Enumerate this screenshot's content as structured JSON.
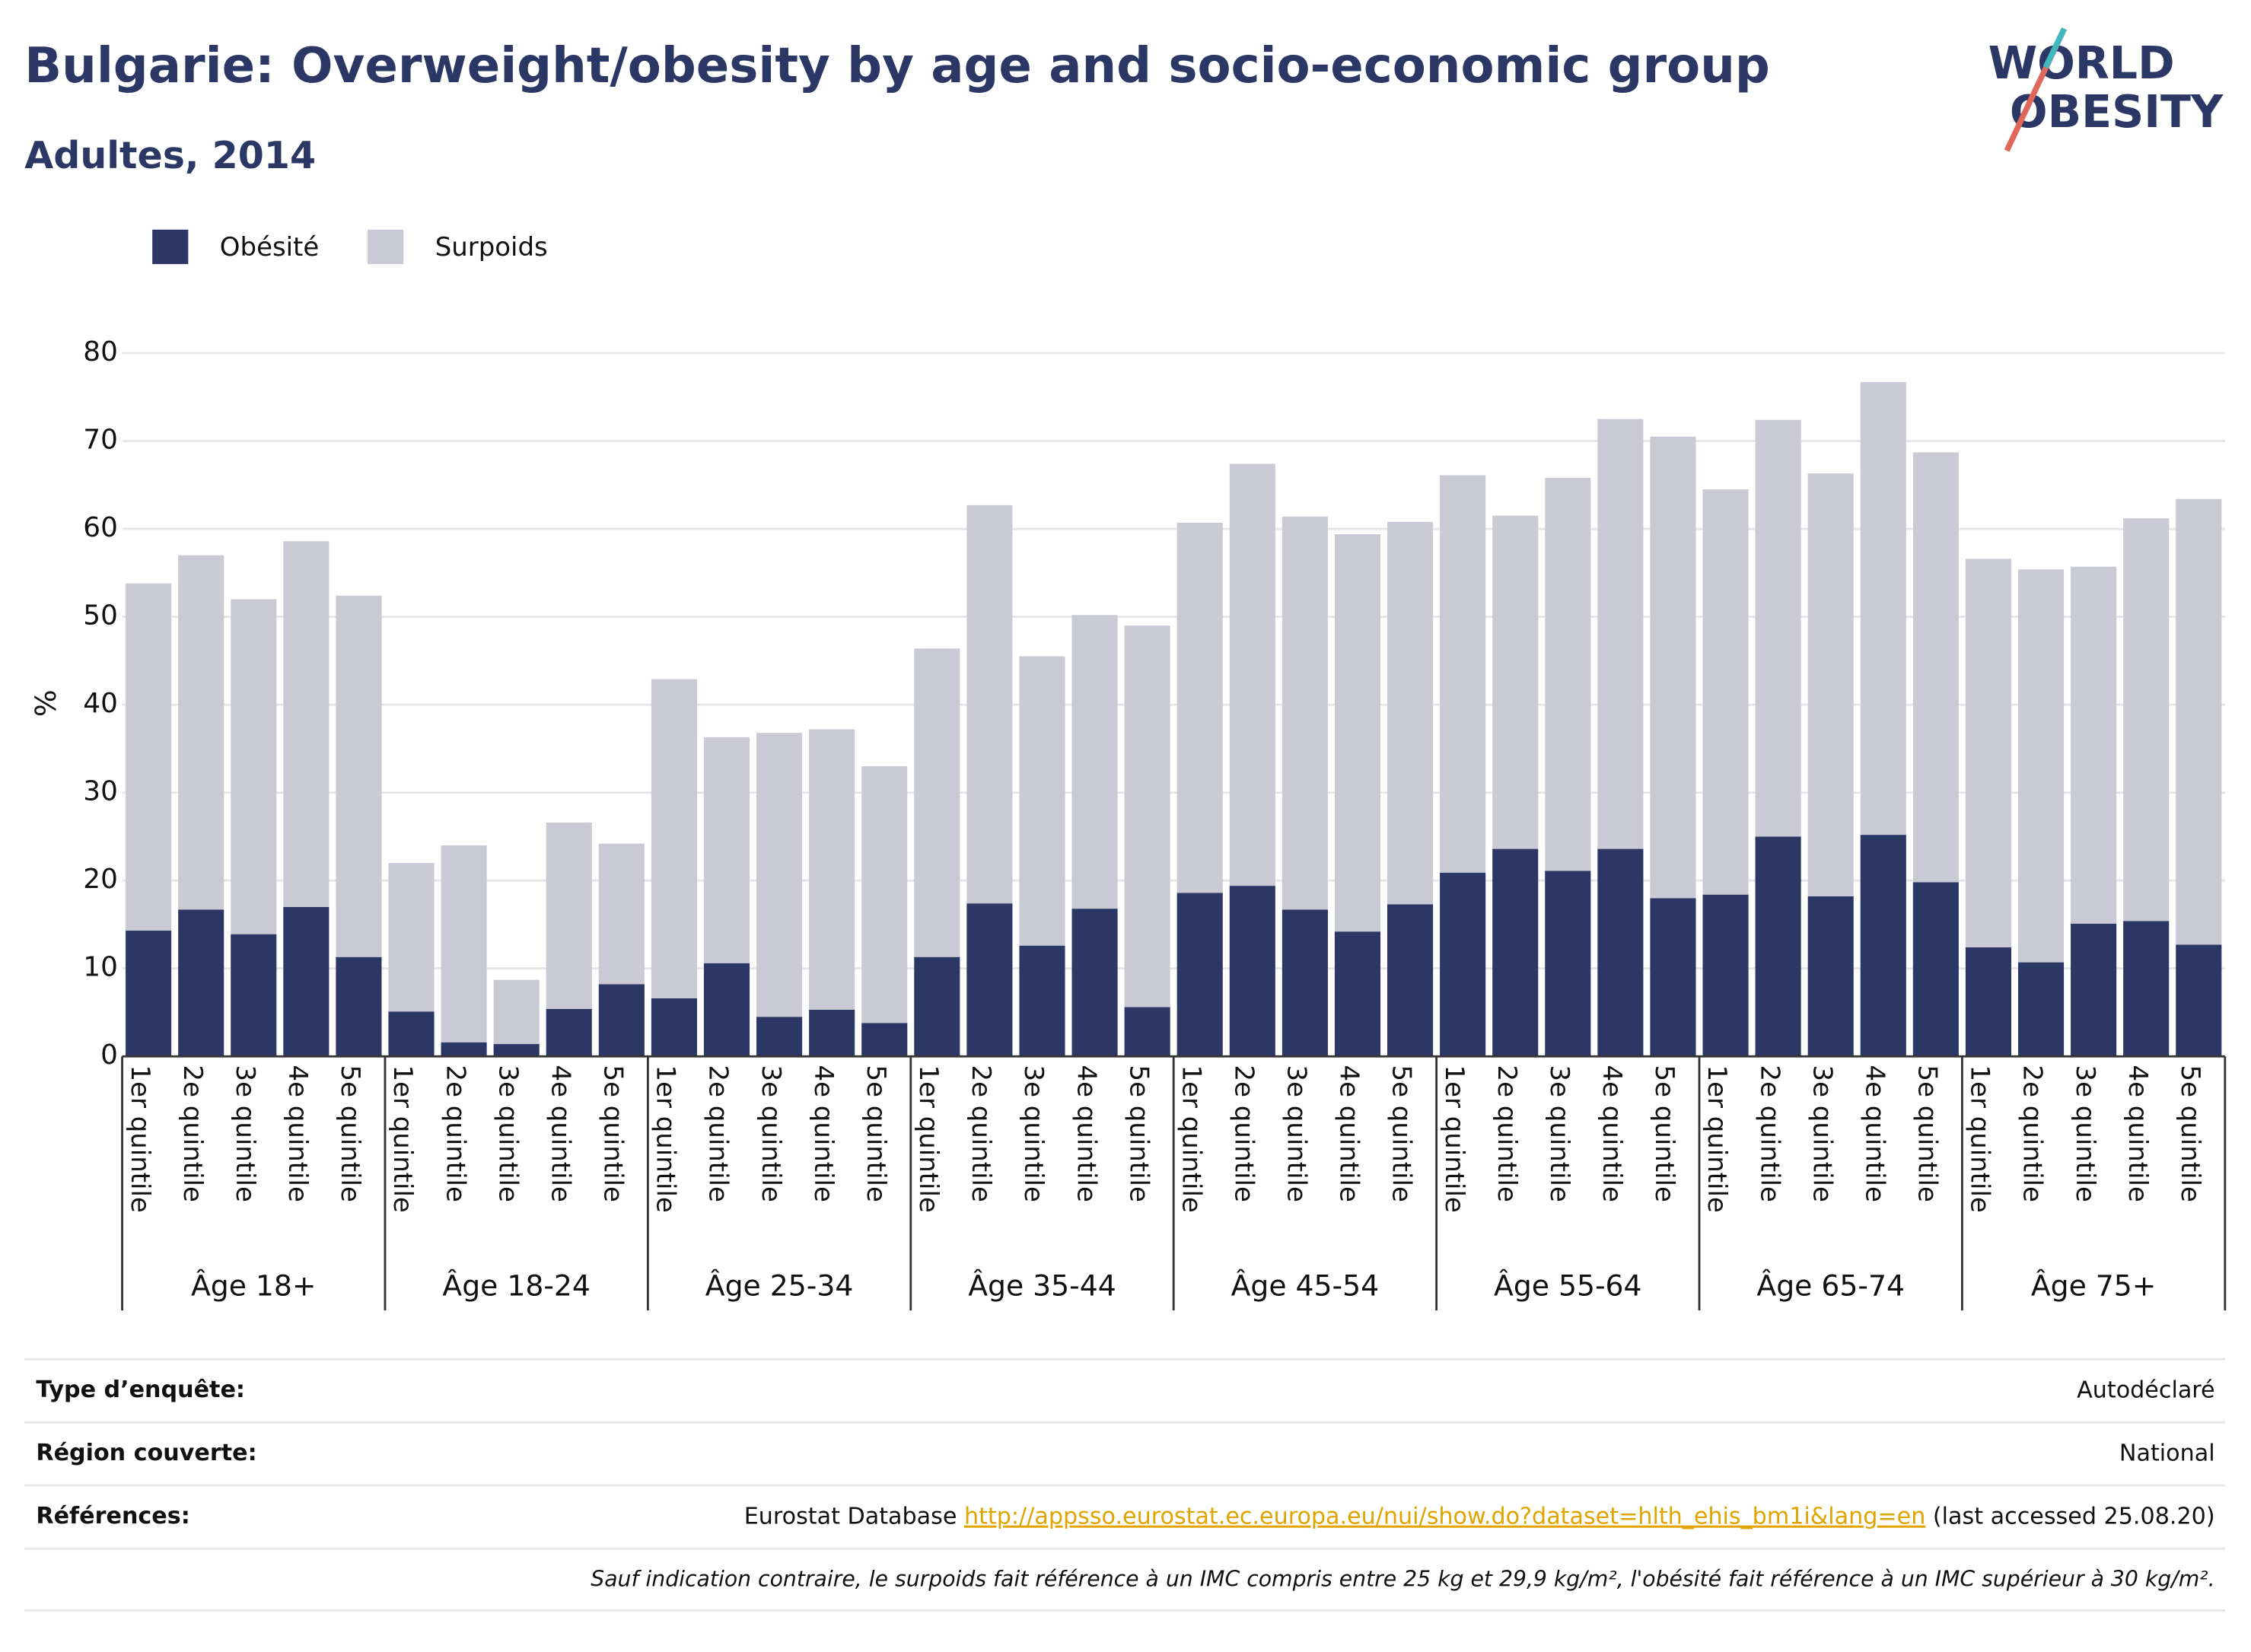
{
  "chart_data": {
    "type": "stacked_bar",
    "title": "Bulgarie: Overweight/obesity by age and socio-economic group",
    "subtitle": "Adultes, 2014",
    "y_label": "%",
    "logo": [
      "WORLD",
      "OBESITY"
    ],
    "groups": [
      "Âge 18+",
      "Âge 18-24",
      "Âge 25-34",
      "Âge 35-44",
      "Âge 45-54",
      "Âge 55-64",
      "Âge 65-74",
      "Âge 75+"
    ],
    "categories": [
      "1er quintile",
      "2e quintile",
      "3e quintile",
      "4e quintile",
      "5e quintile",
      "1er quintile",
      "2e quintile",
      "3e quintile",
      "4e quintile",
      "5e quintile",
      "1er quintile",
      "2e quintile",
      "3e quintile",
      "4e quintile",
      "5e quintile",
      "1er quintile",
      "2e quintile",
      "3e quintile",
      "4e quintile",
      "5e quintile",
      "1er quintile",
      "2e quintile",
      "3e quintile",
      "4e quintile",
      "5e quintile",
      "1er quintile",
      "2e quintile",
      "3e quintile",
      "4e quintile",
      "5e quintile",
      "1er quintile",
      "2e quintile",
      "3e quintile",
      "4e quintile",
      "5e quintile",
      "1er quintile",
      "2e quintile",
      "3e quintile",
      "4e quintile",
      "5e quintile"
    ],
    "series": [
      {
        "name": "Obésité",
        "color": "#2b3764",
        "values": [
          14.3,
          16.7,
          13.9,
          17.0,
          11.3,
          5.1,
          1.6,
          1.4,
          5.4,
          8.2,
          6.6,
          10.6,
          4.5,
          5.3,
          3.8,
          11.3,
          17.4,
          12.6,
          16.8,
          5.6,
          18.6,
          19.4,
          16.7,
          14.2,
          17.3,
          20.9,
          23.6,
          21.1,
          23.6,
          18.0,
          18.4,
          25.0,
          18.2,
          25.2,
          19.8,
          12.4,
          10.7,
          15.1,
          15.4,
          12.7
        ]
      },
      {
        "name": "Surpoids",
        "color": "#c9cad6",
        "values": [
          39.5,
          40.3,
          38.1,
          41.6,
          41.1,
          16.9,
          22.4,
          7.3,
          21.2,
          16.0,
          36.3,
          25.7,
          32.3,
          31.9,
          29.2,
          35.1,
          45.3,
          32.9,
          33.4,
          43.4,
          42.1,
          48.0,
          44.7,
          45.2,
          43.5,
          45.2,
          37.9,
          44.7,
          48.9,
          52.5,
          46.1,
          47.4,
          48.1,
          51.5,
          48.9,
          44.2,
          44.7,
          40.6,
          45.8,
          50.7
        ]
      }
    ],
    "ylim": [
      0,
      80
    ],
    "yticks": [
      0,
      10,
      20,
      30,
      40,
      50,
      60,
      70,
      80
    ],
    "grid": true,
    "legend": "top-left"
  },
  "footer": {
    "rows": [
      {
        "label": "Type d’enquête:",
        "value": [
          "Autodéclaré"
        ]
      },
      {
        "label": "Région couverte:",
        "value": [
          "National"
        ]
      },
      {
        "label": "Références:",
        "value": [
          "Eurostat Database ",
          "http://appsso.eurostat.ec.europa.eu/nui/show.do?dataset=hlth_ehis_bm1i&lang=en",
          " (last accessed 25.08.20)"
        ]
      }
    ],
    "note": "Sauf indication contraire, le surpoids fait référence à un IMC compris entre 25 kg et 29,9 kg/m², l'obésité fait référence à un IMC supérieur à 30 kg/m²."
  }
}
